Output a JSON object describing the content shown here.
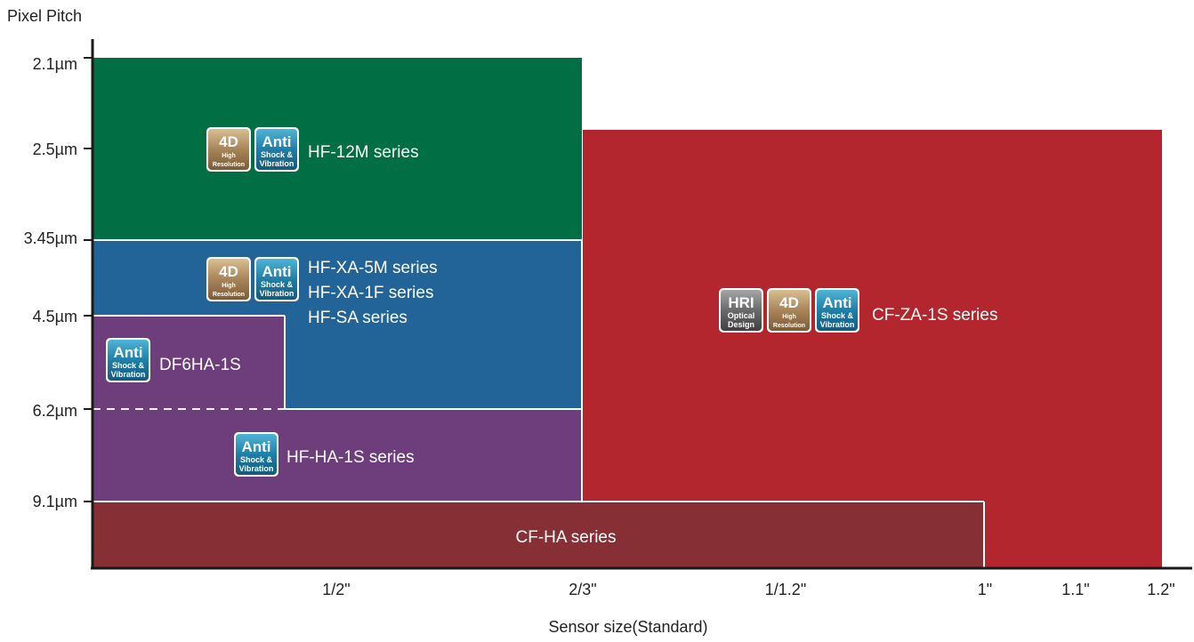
{
  "chart_data": {
    "type": "block-map",
    "ylabel": "Pixel Pitch",
    "xlabel": "Sensor size(Standard)",
    "y_ticks": [
      "2.1µm",
      "2.5µm",
      "3.45µm",
      "4.5µm",
      "6.2µm",
      "9.1µm"
    ],
    "x_ticks": [
      "1/2\"",
      "2/3\"",
      "1/1.2\"",
      "1\"",
      "1.1\"",
      "1.2\""
    ],
    "badges": {
      "hri": {
        "line1": "HRI",
        "line2": "Optical",
        "line3": "Design"
      },
      "fourd": {
        "line1": "4D",
        "line2": "High",
        "line3": "Resolution"
      },
      "anti": {
        "line1": "Anti",
        "line2": "Shock &",
        "line3": "Vibration"
      }
    },
    "segments": [
      {
        "name": "HF-12M series",
        "lines": [
          "HF-12M series"
        ],
        "color": "#016e44",
        "max_sensor": "2/3\"",
        "min_pitch": "2.1µm",
        "max_pitch": "3.45µm",
        "features": [
          "fourd",
          "anti"
        ]
      },
      {
        "name": "HF-XA-5M series / HF-XA-1F series / HF-SA series",
        "lines": [
          "HF-XA-5M series",
          "HF-XA-1F series",
          "HF-SA series"
        ],
        "color": "#236498",
        "max_sensor": "2/3\"",
        "min_pitch": "3.45µm",
        "max_pitch": "6.2µm",
        "features": [
          "fourd",
          "anti"
        ]
      },
      {
        "name": "DF6HA-1S",
        "lines": [
          "DF6HA-1S"
        ],
        "color": "#6d3e7b",
        "max_sensor": "1/2\"",
        "min_pitch": "4.5µm",
        "max_pitch": "6.2µm",
        "features": [
          "anti"
        ]
      },
      {
        "name": "HF-HA-1S series",
        "lines": [
          "HF-HA-1S series"
        ],
        "color": "#6d3e7b",
        "max_sensor": "2/3\"",
        "min_pitch": "6.2µm",
        "max_pitch": "9.1µm",
        "features": [
          "anti"
        ]
      },
      {
        "name": "CF-ZA-1S series",
        "lines": [
          "CF-ZA-1S series"
        ],
        "color": "#b3262d",
        "max_sensor": "1.2\"",
        "min_pitch": "2.5µm",
        "max_pitch": null,
        "features": [
          "hri",
          "fourd",
          "anti"
        ]
      },
      {
        "name": "CF-HA series",
        "lines": [
          "CF-HA series"
        ],
        "color": "#862f34",
        "max_sensor": "1\"",
        "min_pitch": "9.1µm",
        "max_pitch": null,
        "features": []
      }
    ]
  },
  "colors": {
    "badge_4d": "#a8845a",
    "badge_anti": "#1f7fa8",
    "badge_hri": "#6a6a6a",
    "axis": "#1a1a1a"
  }
}
